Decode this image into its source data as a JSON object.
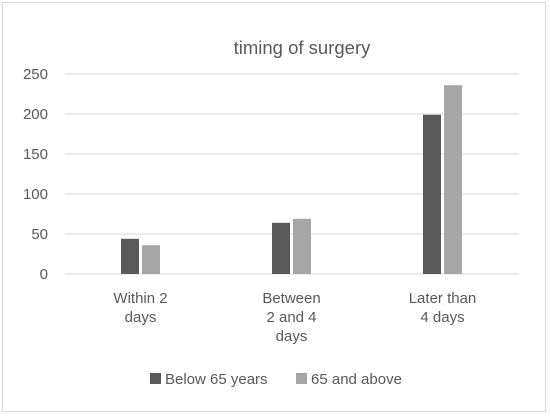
{
  "chart_data": {
    "type": "bar",
    "title": "timing of surgery",
    "categories": [
      [
        "Within 2",
        "days"
      ],
      [
        "Between",
        "2 and 4",
        "days"
      ],
      [
        "Later than",
        "4 days"
      ]
    ],
    "series": [
      {
        "name": "Below 65 years",
        "color": "#595959",
        "values": [
          44,
          64,
          199
        ]
      },
      {
        "name": "65 and above",
        "color": "#a6a6a6",
        "values": [
          36,
          69,
          236
        ]
      }
    ],
    "ylim": [
      0,
      250
    ],
    "yticks": [
      0,
      50,
      100,
      150,
      200,
      250
    ],
    "grid": true,
    "legend": "bottom"
  }
}
